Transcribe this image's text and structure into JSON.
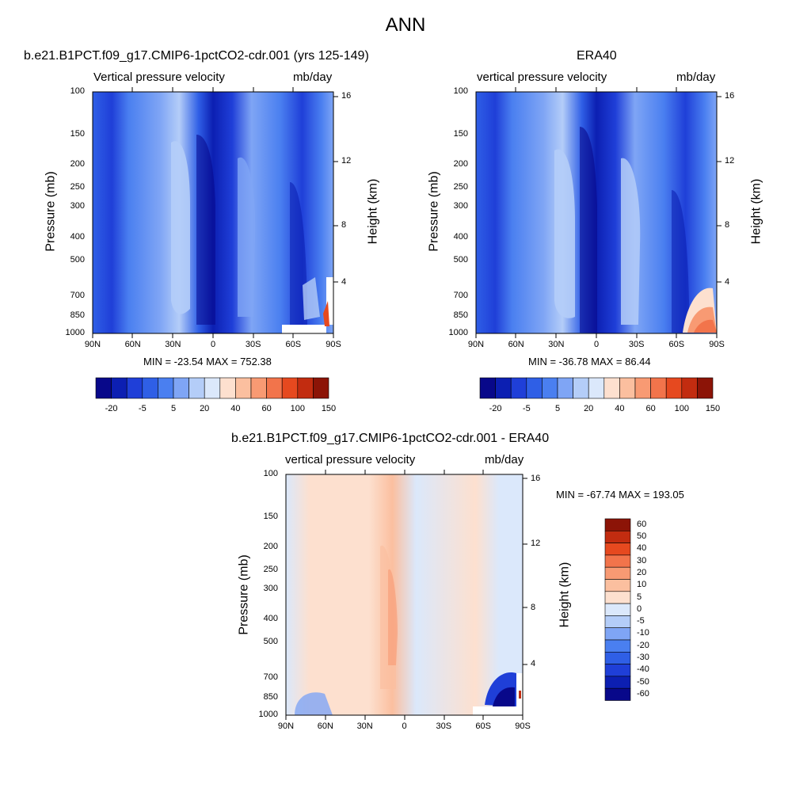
{
  "title": "ANN",
  "palette_main": [
    "#08088a",
    "#0c1fb2",
    "#1f3fd8",
    "#2f5fe6",
    "#4a7ff0",
    "#7fa5f5",
    "#b4cdf8",
    "#dbe8fb",
    "#fde0cf",
    "#fbbf9f",
    "#f89a73",
    "#f2744b",
    "#e6491f",
    "#c22c10",
    "#8c1407"
  ],
  "palette_diff": [
    "#08088a",
    "#0c1fb2",
    "#1f3fd8",
    "#2f5fe6",
    "#4a7ff0",
    "#7fa5f5",
    "#b4cdf8",
    "#dbe8fb",
    "#fde0cf",
    "#fbbf9f",
    "#f89a73",
    "#f2744b",
    "#e6491f",
    "#c22c10",
    "#8c1407"
  ],
  "chart_data": [
    {
      "type": "heatmap",
      "title": "b.e21.B1PCT.f09_g17.CMIP6-1pctCO2-cdr.001 (yrs 125-149)",
      "left_label": "Vertical pressure velocity",
      "right_label": "mb/day",
      "ylabel": "Pressure (mb)",
      "y2label": "Height (km)",
      "xticks": [
        "90N",
        "60N",
        "30N",
        "0",
        "30S",
        "60S",
        "90S"
      ],
      "yticks": [
        "100",
        "150",
        "200",
        "250",
        "300",
        "400",
        "500",
        "700",
        "850",
        "1000"
      ],
      "y2ticks": [
        "16",
        "12",
        "8",
        "4"
      ],
      "stats": "MIN = -23.54  MAX = 752.38",
      "colorbar_labels": [
        "-20",
        "-5",
        "5",
        "20",
        "40",
        "60",
        "100",
        "150"
      ]
    },
    {
      "type": "heatmap",
      "title": "ERA40",
      "left_label": "vertical pressure velocity",
      "right_label": "mb/day",
      "ylabel": "Pressure (mb)",
      "y2label": "Height (km)",
      "xticks": [
        "90N",
        "60N",
        "30N",
        "0",
        "30S",
        "60S",
        "90S"
      ],
      "yticks": [
        "100",
        "150",
        "200",
        "250",
        "300",
        "400",
        "500",
        "700",
        "850",
        "1000"
      ],
      "y2ticks": [
        "16",
        "12",
        "8",
        "4"
      ],
      "stats": "MIN = -36.78  MAX =  86.44",
      "colorbar_labels": [
        "-20",
        "-5",
        "5",
        "20",
        "40",
        "60",
        "100",
        "150"
      ]
    },
    {
      "type": "heatmap",
      "title": "b.e21.B1PCT.f09_g17.CMIP6-1pctCO2-cdr.001 - ERA40",
      "left_label": "vertical pressure velocity",
      "right_label": "mb/day",
      "ylabel": "Pressure (mb)",
      "y2label": "Height (km)",
      "xticks": [
        "90N",
        "60N",
        "30N",
        "0",
        "30S",
        "60S",
        "90S"
      ],
      "yticks": [
        "100",
        "150",
        "200",
        "250",
        "300",
        "400",
        "500",
        "700",
        "850",
        "1000"
      ],
      "y2ticks": [
        "16",
        "12",
        "8",
        "4"
      ],
      "stats": "MIN = -67.74  MAX = 193.05",
      "colorbar_labels": [
        "60",
        "50",
        "40",
        "30",
        "20",
        "10",
        "5",
        "0",
        "-5",
        "-10",
        "-20",
        "-30",
        "-40",
        "-50",
        "-60"
      ]
    }
  ]
}
